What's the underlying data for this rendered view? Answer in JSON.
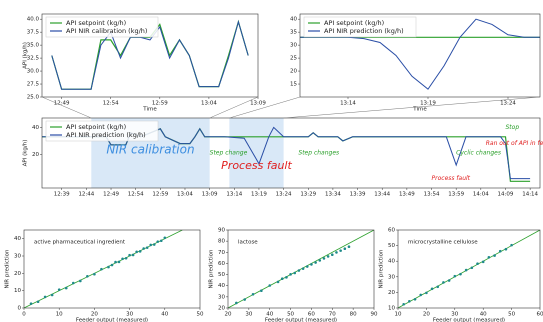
{
  "chart_data": [
    {
      "type": "line",
      "xlabel": "Time",
      "ylabel": "API (kg/h)",
      "x": [
        "12:48",
        "12:49",
        "12:50",
        "12:51",
        "12:52",
        "12:53",
        "12:54",
        "12:55",
        "12:56",
        "12:57",
        "12:58",
        "12:59",
        "13:00",
        "13:01",
        "13:02",
        "13:03",
        "13:04",
        "13:05",
        "13:06",
        "13:07",
        "13:08"
      ],
      "series": [
        {
          "name": "API setpoint (kg/h)",
          "color": "#2ca02c",
          "values": [
            33,
            26.5,
            26.5,
            26.5,
            26.5,
            36,
            36,
            33,
            36.5,
            36.5,
            36.5,
            39,
            33,
            36,
            33,
            27,
            27,
            27,
            33,
            39.5,
            33
          ]
        },
        {
          "name": "API NIR calibration (kg/h)",
          "color": "#2a4ea6",
          "values": [
            33,
            26.5,
            26.5,
            26.5,
            26.5,
            35,
            37.5,
            32.5,
            36.5,
            36.5,
            36,
            38.5,
            32.5,
            36,
            33,
            27,
            27,
            27,
            32.5,
            39.5,
            33
          ]
        }
      ],
      "xlim": [
        "12:47",
        "13:09"
      ],
      "xticks": [
        "12:49",
        "12:54",
        "12:59",
        "13:04",
        "13:09"
      ],
      "ylim": [
        25,
        41
      ],
      "yticks": [
        {
          "value": 25,
          "label": "25.0"
        },
        {
          "value": 27.5,
          "label": "27.5"
        },
        {
          "value": 30,
          "label": "30.0"
        },
        {
          "value": 32.5,
          "label": "32.5"
        },
        {
          "value": 35,
          "label": "35.0"
        },
        {
          "value": 37.5,
          "label": "37.5"
        },
        {
          "value": 40,
          "label": "40.0"
        }
      ]
    },
    {
      "type": "line",
      "xlabel": "Time",
      "x": [
        "13:11",
        "13:12",
        "13:13",
        "13:14",
        "13:15",
        "13:16",
        "13:17",
        "13:18",
        "13:19",
        "13:20",
        "13:21",
        "13:22",
        "13:23",
        "13:24",
        "13:25",
        "13:26"
      ],
      "series": [
        {
          "name": "API setpoint (kg/h)",
          "color": "#2ca02c",
          "values": [
            33,
            33,
            33,
            33,
            33,
            33,
            33,
            33,
            33,
            33,
            33,
            33,
            33,
            33,
            33,
            33
          ]
        },
        {
          "name": "API NIR prediction (kg/h)",
          "color": "#2a4ea6",
          "values": [
            33,
            33,
            33,
            33,
            32.5,
            31,
            26,
            18,
            13,
            22,
            33,
            40,
            38,
            34,
            33,
            33
          ]
        }
      ],
      "xlim": [
        "13:11",
        "13:26"
      ],
      "xticks": [
        "13:14",
        "13:19",
        "13:24"
      ],
      "ylim": [
        10,
        42
      ],
      "yticks": [
        15,
        20,
        25,
        30,
        35,
        40
      ]
    },
    {
      "type": "line",
      "ylabel": "API (kg/h)",
      "x": [
        "12:35",
        "12:45",
        "12:48",
        "12:49",
        "12:52",
        "12:53",
        "12:55",
        "12:57",
        "12:59",
        "13:00",
        "13:03",
        "13:05",
        "13:06",
        "13:07",
        "13:08",
        "13:12",
        "13:16",
        "13:19",
        "13:21",
        "13:22",
        "13:24",
        "13:29",
        "13:30",
        "13:31",
        "13:35",
        "13:36",
        "13:38",
        "13:50",
        "13:57",
        "13:59",
        "14:01",
        "14:08",
        "14:09",
        "14:10",
        "14:14"
      ],
      "series": [
        {
          "name": "API setpoint (kg/h)",
          "color": "#2ca02c",
          "values": [
            33,
            33,
            33,
            27,
            27,
            36,
            33,
            36,
            39,
            33,
            28,
            28,
            33,
            39,
            33,
            33,
            33,
            33,
            33,
            33,
            33,
            33,
            36,
            33,
            33,
            30,
            33,
            33,
            33,
            33,
            33,
            33,
            33,
            0,
            0
          ]
        },
        {
          "name": "API NIR prediction (kg/h)",
          "color": "#2a4ea6",
          "values": [
            33,
            33,
            33,
            27,
            27,
            36,
            33,
            36,
            39,
            33,
            28,
            28,
            33,
            39,
            33,
            33,
            32,
            13,
            33,
            40,
            33,
            33,
            36,
            33,
            33,
            30,
            33,
            33,
            33,
            12,
            33,
            33,
            28,
            2,
            2
          ]
        }
      ],
      "xlim": [
        "12:35",
        "14:16"
      ],
      "xticks": [
        "12:39",
        "12:44",
        "12:49",
        "12:54",
        "12:59",
        "13:04",
        "13:09",
        "13:14",
        "13:19",
        "13:24",
        "13:29",
        "13:34",
        "13:39",
        "13:44",
        "13:49",
        "13:54",
        "13:59",
        "14:04",
        "14:09",
        "14:14"
      ],
      "ylim": [
        -5,
        47
      ],
      "yticks": [
        20,
        40
      ],
      "spans": [
        {
          "label": "NIR calibration",
          "x": [
            "12:45",
            "13:09"
          ],
          "color": "#3d8ee0"
        },
        {
          "label": "Process fault",
          "x": [
            "13:13",
            "13:24"
          ],
          "color": "#e02020"
        }
      ],
      "annotations": [
        {
          "text": "Step change",
          "x": "13:09",
          "y": 21,
          "color": "#2ca02c"
        },
        {
          "text": "Step changes",
          "x": "13:27",
          "y": 21,
          "color": "#2ca02c"
        },
        {
          "text": "Cyclic changes",
          "x": "13:59",
          "y": 21,
          "color": "#2ca02c"
        },
        {
          "text": "Stop",
          "x": "14:09",
          "y": 40,
          "color": "#2ca02c"
        },
        {
          "text": "Ran out of API in feeder",
          "x": "14:05",
          "y": 28,
          "color": "#e02020"
        },
        {
          "text": "Process fault",
          "x": "13:54",
          "y": 2,
          "color": "#e02020"
        }
      ]
    },
    {
      "type": "scatter",
      "title": "active pharmaceutical ingredient",
      "xlabel": "Feeder output (measured)",
      "ylabel": "NIR prediction",
      "color": "#1f8a8a",
      "identity_line": true,
      "x": [
        2,
        4,
        6,
        8,
        10,
        12,
        14,
        16,
        18,
        20,
        22,
        24,
        25,
        26,
        27,
        28,
        29,
        30,
        31,
        32,
        33,
        34,
        35,
        36,
        37,
        38,
        39,
        40
      ],
      "values": [
        2.5,
        3.6,
        6.4,
        7.5,
        10.6,
        11.5,
        14.4,
        15.6,
        18.3,
        19.5,
        22.4,
        23.6,
        24.8,
        26.5,
        26.6,
        28.4,
        28.7,
        30.5,
        30.6,
        32.4,
        32.7,
        34.3,
        34.8,
        36.4,
        36.6,
        38.3,
        38.8,
        40.5
      ],
      "xlim": [
        0,
        50
      ],
      "xticks": [
        0,
        10,
        20,
        30,
        40,
        50
      ],
      "ylim": [
        0,
        45
      ],
      "yticks": [
        0,
        10,
        20,
        30,
        40
      ]
    },
    {
      "type": "scatter",
      "title": "lactose",
      "xlabel": "Feeder output (measured)",
      "ylabel": "NIR prediction",
      "color": "#1f8a8a",
      "identity_line": true,
      "x": [
        24,
        28,
        32,
        36,
        40,
        44,
        46,
        48,
        50,
        52,
        54,
        56,
        58,
        60,
        62,
        64,
        66,
        68,
        70,
        72,
        74,
        76,
        78
      ],
      "values": [
        24.5,
        27.6,
        32.3,
        35.5,
        40.2,
        43.4,
        46.3,
        47.5,
        50.2,
        51.4,
        53.6,
        55.3,
        57.2,
        59.1,
        60.8,
        62.7,
        64.5,
        66.3,
        67.8,
        69.9,
        71.5,
        73.2,
        75
      ],
      "xlim": [
        20,
        90
      ],
      "xticks": [
        20,
        30,
        40,
        50,
        60,
        70,
        80,
        90
      ],
      "ylim": [
        20,
        90
      ],
      "yticks": [
        20,
        30,
        40,
        50,
        60,
        70,
        80,
        90
      ]
    },
    {
      "type": "scatter",
      "title": "microcrystalline cellulose",
      "xlabel": "Feeder output (measured)",
      "ylabel": "NIR prediction",
      "color": "#1f8a8a",
      "identity_line": true,
      "x": [
        12,
        14,
        16,
        18,
        20,
        22,
        24,
        26,
        28,
        30,
        32,
        34,
        36,
        38,
        40,
        42,
        44,
        46,
        48,
        50
      ],
      "values": [
        12.4,
        14.3,
        15.6,
        18.4,
        19.7,
        22.3,
        23.6,
        26.4,
        27.6,
        30.4,
        31.7,
        34.3,
        35.8,
        38.4,
        39.6,
        42.5,
        43.6,
        46.4,
        47.7,
        50.3
      ],
      "xlim": [
        10,
        60
      ],
      "xticks": [
        10,
        20,
        30,
        40,
        50,
        60
      ],
      "ylim": [
        10,
        60
      ],
      "yticks": [
        10,
        20,
        30,
        40,
        50,
        60
      ]
    }
  ]
}
